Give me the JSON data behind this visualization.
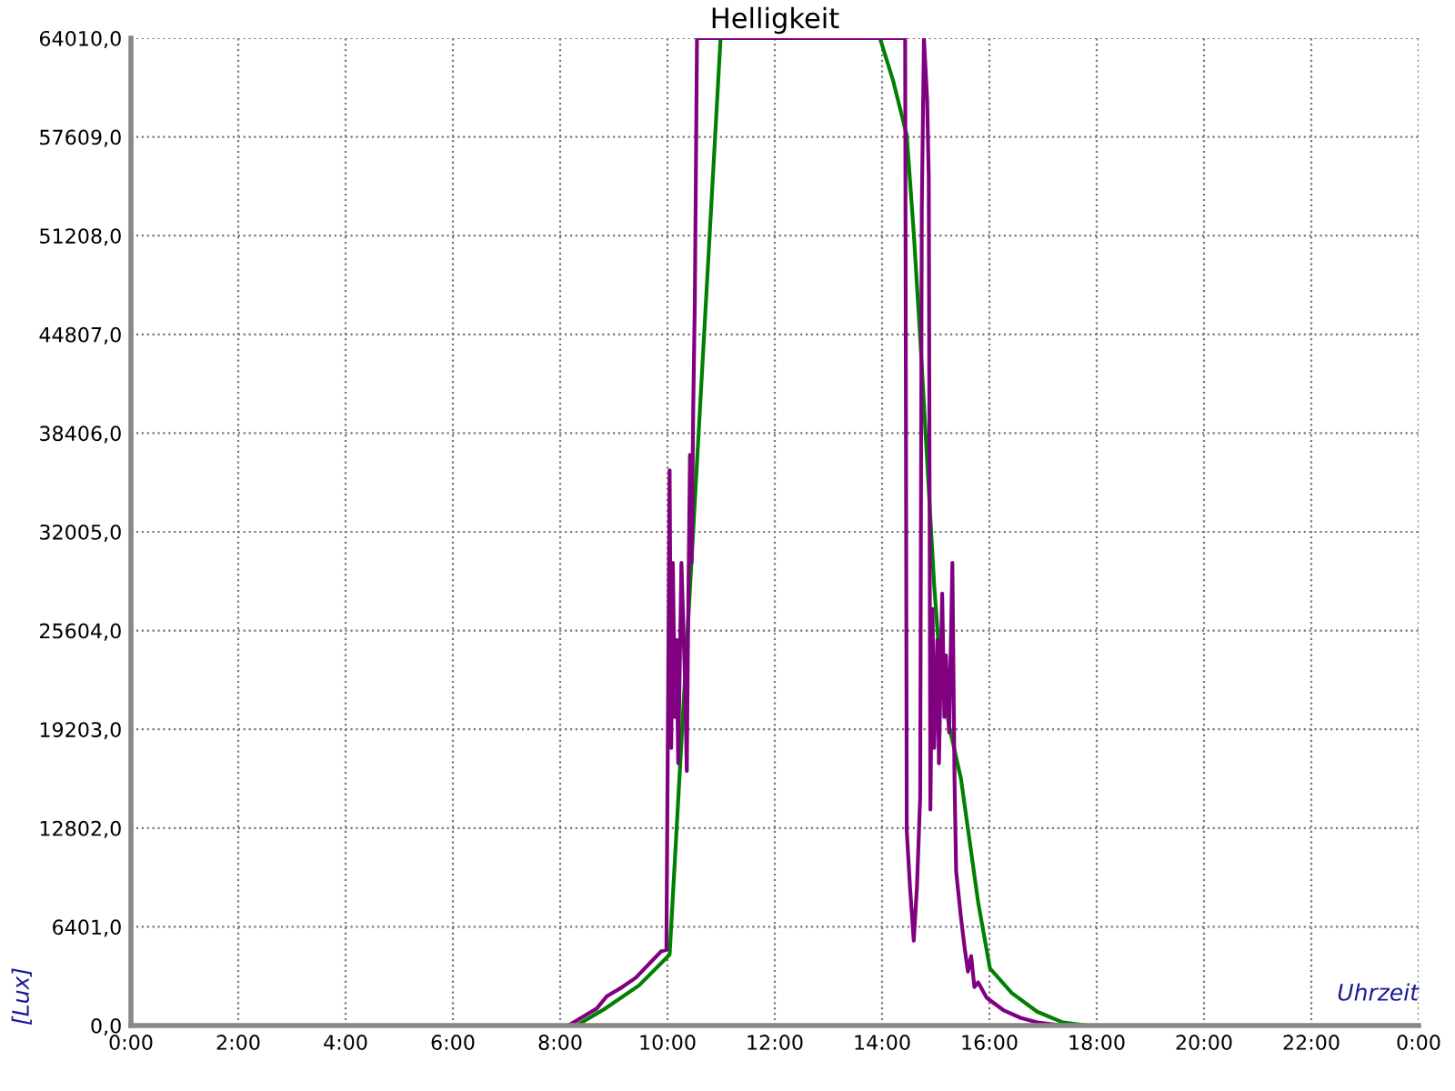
{
  "chart_data": {
    "type": "line",
    "title": "Helligkeit",
    "xlabel": "Uhrzeit",
    "ylabel": "[Lux]",
    "xlim": [
      0,
      24
    ],
    "xticks": [
      {
        "value": 0,
        "label": "0:00"
      },
      {
        "value": 2,
        "label": "2:00"
      },
      {
        "value": 4,
        "label": "4:00"
      },
      {
        "value": 6,
        "label": "6:00"
      },
      {
        "value": 8,
        "label": "8:00"
      },
      {
        "value": 10,
        "label": "10:00"
      },
      {
        "value": 12,
        "label": "12:00"
      },
      {
        "value": 14,
        "label": "14:00"
      },
      {
        "value": 16,
        "label": "16:00"
      },
      {
        "value": 18,
        "label": "18:00"
      },
      {
        "value": 20,
        "label": "20:00"
      },
      {
        "value": 22,
        "label": "22:00"
      },
      {
        "value": 24,
        "label": "0:00"
      }
    ],
    "ylim": [
      0,
      64010
    ],
    "yticks": [
      {
        "value": 0,
        "label": "0,0"
      },
      {
        "value": 6401,
        "label": "6401,0"
      },
      {
        "value": 12802,
        "label": "12802,0"
      },
      {
        "value": 19203,
        "label": "19203,0"
      },
      {
        "value": 25604,
        "label": "25604,0"
      },
      {
        "value": 32005,
        "label": "32005,0"
      },
      {
        "value": 38406,
        "label": "38406,0"
      },
      {
        "value": 44807,
        "label": "44807,0"
      },
      {
        "value": 51208,
        "label": "51208,0"
      },
      {
        "value": 57609,
        "label": "57609,0"
      },
      {
        "value": 64010,
        "label": "64010,0"
      }
    ],
    "grid": true,
    "marker": "none",
    "line_style": "solid",
    "series": [
      {
        "color": "#008000",
        "x": [
          0,
          8.3,
          8.84,
          9.47,
          10.04,
          10.99,
          13.96,
          14.21,
          14.46,
          14.59,
          14.71,
          14.84,
          14.97,
          15.09,
          15.25,
          15.47,
          15.79,
          16.01,
          16.42,
          16.89,
          17.37,
          17.84,
          24
        ],
        "values": [
          0,
          0,
          1100,
          2600,
          4600,
          64010,
          64010,
          61200,
          57700,
          51400,
          44600,
          36600,
          28600,
          22900,
          19400,
          16000,
          8000,
          3700,
          2100,
          900,
          200,
          0,
          0
        ]
      },
      {
        "color": "#800080",
        "x": [
          0,
          8.15,
          8.68,
          8.87,
          9.16,
          9.41,
          9.88,
          9.98,
          10.04,
          10.07,
          10.1,
          10.14,
          10.17,
          10.2,
          10.26,
          10.33,
          10.36,
          10.39,
          10.42,
          10.45,
          10.48,
          10.51,
          10.55,
          14.43,
          14.46,
          14.52,
          14.59,
          14.65,
          14.71,
          14.74,
          14.78,
          14.84,
          14.87,
          14.9,
          14.94,
          14.97,
          15.03,
          15.06,
          15.12,
          15.16,
          15.19,
          15.25,
          15.31,
          15.35,
          15.38,
          15.47,
          15.54,
          15.6,
          15.66,
          15.72,
          15.79,
          15.95,
          16.26,
          16.58,
          16.89,
          17.37,
          24
        ],
        "values": [
          0,
          0,
          1100,
          1900,
          2500,
          3100,
          4800,
          4900,
          36000,
          18000,
          30000,
          20000,
          25000,
          17000,
          30000,
          22000,
          16500,
          28000,
          37000,
          30000,
          40000,
          47000,
          64010,
          64010,
          12600,
          9000,
          5500,
          9000,
          14800,
          53000,
          64010,
          60000,
          55000,
          14000,
          27000,
          18000,
          25000,
          17000,
          28000,
          20000,
          24000,
          19000,
          30000,
          16000,
          10000,
          7000,
          5000,
          3500,
          4500,
          2500,
          2800,
          1800,
          1000,
          500,
          200,
          0,
          0
        ]
      }
    ]
  }
}
